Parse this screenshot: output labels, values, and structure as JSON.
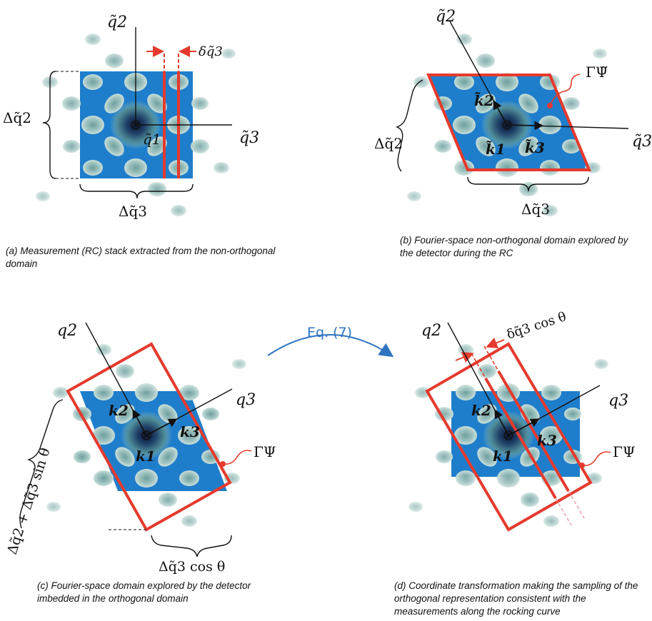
{
  "colors": {
    "domain_blue": "#1f7ecb",
    "frame_red": "#e53a2d",
    "axis": "#111111",
    "blob": "#aaccc9",
    "arrow_blue": "#2f74c0"
  },
  "panels": {
    "a": {
      "caption": "(a) Measurement (RC) stack extracted from the non-orthogonal domain",
      "labels": {
        "q2": "q̃2",
        "q3": "q̃3",
        "q1": "q̃1",
        "delta_q2": "Δq̃2",
        "delta_q3": "Δq̃3",
        "delta_small": "δq̃3"
      }
    },
    "b": {
      "caption": "(b) Fourier-space non-orthogonal domain explored by the detector during the RC",
      "labels": {
        "q2": "q̃2",
        "q3": "q̃3",
        "k1": "k̃1",
        "k2": "k̃2",
        "k3": "k̃3",
        "delta_q2": "Δq̃2",
        "delta_q3": "Δq̃3",
        "gamma": "ΓΨ̃"
      }
    },
    "c": {
      "caption": "(c) Fourier-space domain explored by the detector imbedded in the orthogonal domain",
      "labels": {
        "q2": "q2",
        "q3": "q3",
        "k1": "k1",
        "k2": "k2",
        "k3": "k3",
        "delta_sum": "Δq̃2 + Δq̃3 sin θ",
        "delta_cos": "Δq̃3 cos θ",
        "gamma": "ΓΨ"
      }
    },
    "d": {
      "caption": "(d) Coordinate transformation making the sampling of the orthogonal representation consistent with the measurements along the rocking curve",
      "labels": {
        "q2": "q2",
        "q3": "q3",
        "k1": "k1",
        "k2": "k2",
        "k3": "k3",
        "delta_small": "δq̃3 cos θ",
        "gamma": "ΓΨ"
      }
    }
  },
  "transition": {
    "label": "Eq. (7)"
  }
}
